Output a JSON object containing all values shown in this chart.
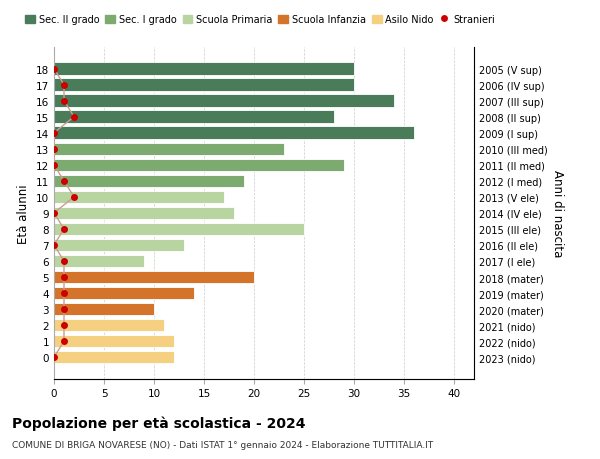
{
  "ages": [
    18,
    17,
    16,
    15,
    14,
    13,
    12,
    11,
    10,
    9,
    8,
    7,
    6,
    5,
    4,
    3,
    2,
    1,
    0
  ],
  "years": [
    "2005 (V sup)",
    "2006 (IV sup)",
    "2007 (III sup)",
    "2008 (II sup)",
    "2009 (I sup)",
    "2010 (III med)",
    "2011 (II med)",
    "2012 (I med)",
    "2013 (V ele)",
    "2014 (IV ele)",
    "2015 (III ele)",
    "2016 (II ele)",
    "2017 (I ele)",
    "2018 (mater)",
    "2019 (mater)",
    "2020 (mater)",
    "2021 (nido)",
    "2022 (nido)",
    "2023 (nido)"
  ],
  "bar_values": [
    30,
    30,
    34,
    28,
    36,
    23,
    29,
    19,
    17,
    18,
    25,
    13,
    9,
    20,
    14,
    10,
    11,
    12,
    12
  ],
  "bar_colors": [
    "#4a7c59",
    "#4a7c59",
    "#4a7c59",
    "#4a7c59",
    "#4a7c59",
    "#7daa6e",
    "#7daa6e",
    "#7daa6e",
    "#b8d4a0",
    "#b8d4a0",
    "#b8d4a0",
    "#b8d4a0",
    "#b8d4a0",
    "#d4732a",
    "#d4732a",
    "#d4732a",
    "#f5d080",
    "#f5d080",
    "#f5d080"
  ],
  "stranieri_values": [
    0,
    1,
    1,
    2,
    0,
    0,
    0,
    1,
    2,
    0,
    1,
    0,
    1,
    1,
    1,
    1,
    1,
    1,
    0
  ],
  "legend_labels": [
    "Sec. II grado",
    "Sec. I grado",
    "Scuola Primaria",
    "Scuola Infanzia",
    "Asilo Nido",
    "Stranieri"
  ],
  "legend_colors": [
    "#4a7c59",
    "#7daa6e",
    "#b8d4a0",
    "#d4732a",
    "#f5d080",
    "#cc0000"
  ],
  "ylabel": "Età alunni",
  "right_ylabel": "Anni di nascita",
  "title": "Popolazione per età scolastica - 2024",
  "subtitle": "COMUNE DI BRIGA NOVARESE (NO) - Dati ISTAT 1° gennaio 2024 - Elaborazione TUTTITALIA.IT",
  "xlim": [
    0,
    42
  ],
  "xticks": [
    0,
    5,
    10,
    15,
    20,
    25,
    30,
    35,
    40
  ],
  "bg_color": "#ffffff",
  "bar_height": 0.78,
  "grid_color": "#cccccc",
  "stranieri_color": "#cc0000",
  "stranieri_line_color": "#c8a090"
}
